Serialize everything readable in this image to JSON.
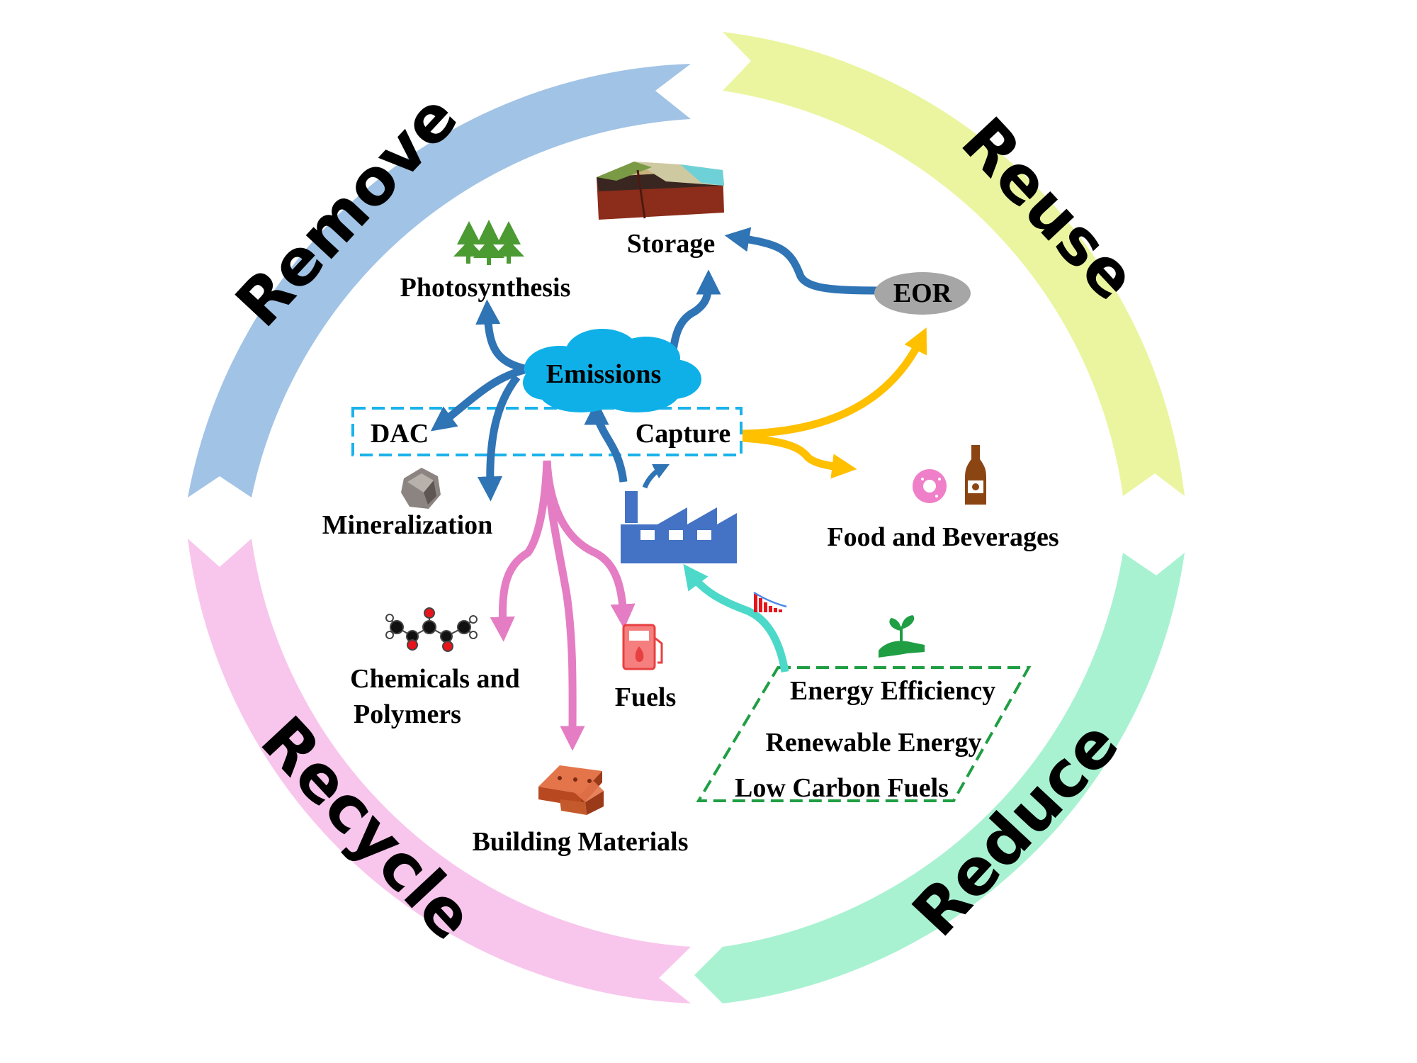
{
  "colors": {
    "remove": "#a1c3e5",
    "reuse": "#ebf59f",
    "reduce": "#a8f2d2",
    "recycle": "#f8c6ec",
    "blue_arrow": "#2f74b5",
    "pink_arrow": "#e47dc3",
    "yellow_arrow": "#ffc000",
    "teal_arrow": "#4dd9c9",
    "cloud": "#0fb0e8",
    "dashed_blue": "#1ab2ea",
    "dashed_green": "#1f9e43",
    "factory": "#4472c4",
    "eor_oval": "#a6a6a6"
  },
  "cycle": {
    "remove": "Remove",
    "reuse": "Reuse",
    "reduce": "Reduce",
    "recycle": "Recycle"
  },
  "nodes": {
    "storage": "Storage",
    "photosynthesis": "Photosynthesis",
    "emissions": "Emissions",
    "eor": "EOR",
    "dac": "DAC",
    "capture": "Capture",
    "mineralization": "Mineralization",
    "food_beverages": "Food and Beverages",
    "chemicals_line1": "Chemicals and",
    "chemicals_line2": "Polymers",
    "fuels": "Fuels",
    "building_materials": "Building Materials",
    "energy_efficiency": "Energy Efficiency",
    "renewable_energy": "Renewable Energy",
    "low_carbon_fuels": "Low Carbon Fuels"
  },
  "icons": [
    "geology-block-icon",
    "trees-icon",
    "rock-icon",
    "factory-icon",
    "molecule-icon",
    "fuel-pump-icon",
    "bricks-icon",
    "donut-icon",
    "bottle-icon",
    "plant-hand-icon",
    "declining-bar-chart-icon"
  ]
}
